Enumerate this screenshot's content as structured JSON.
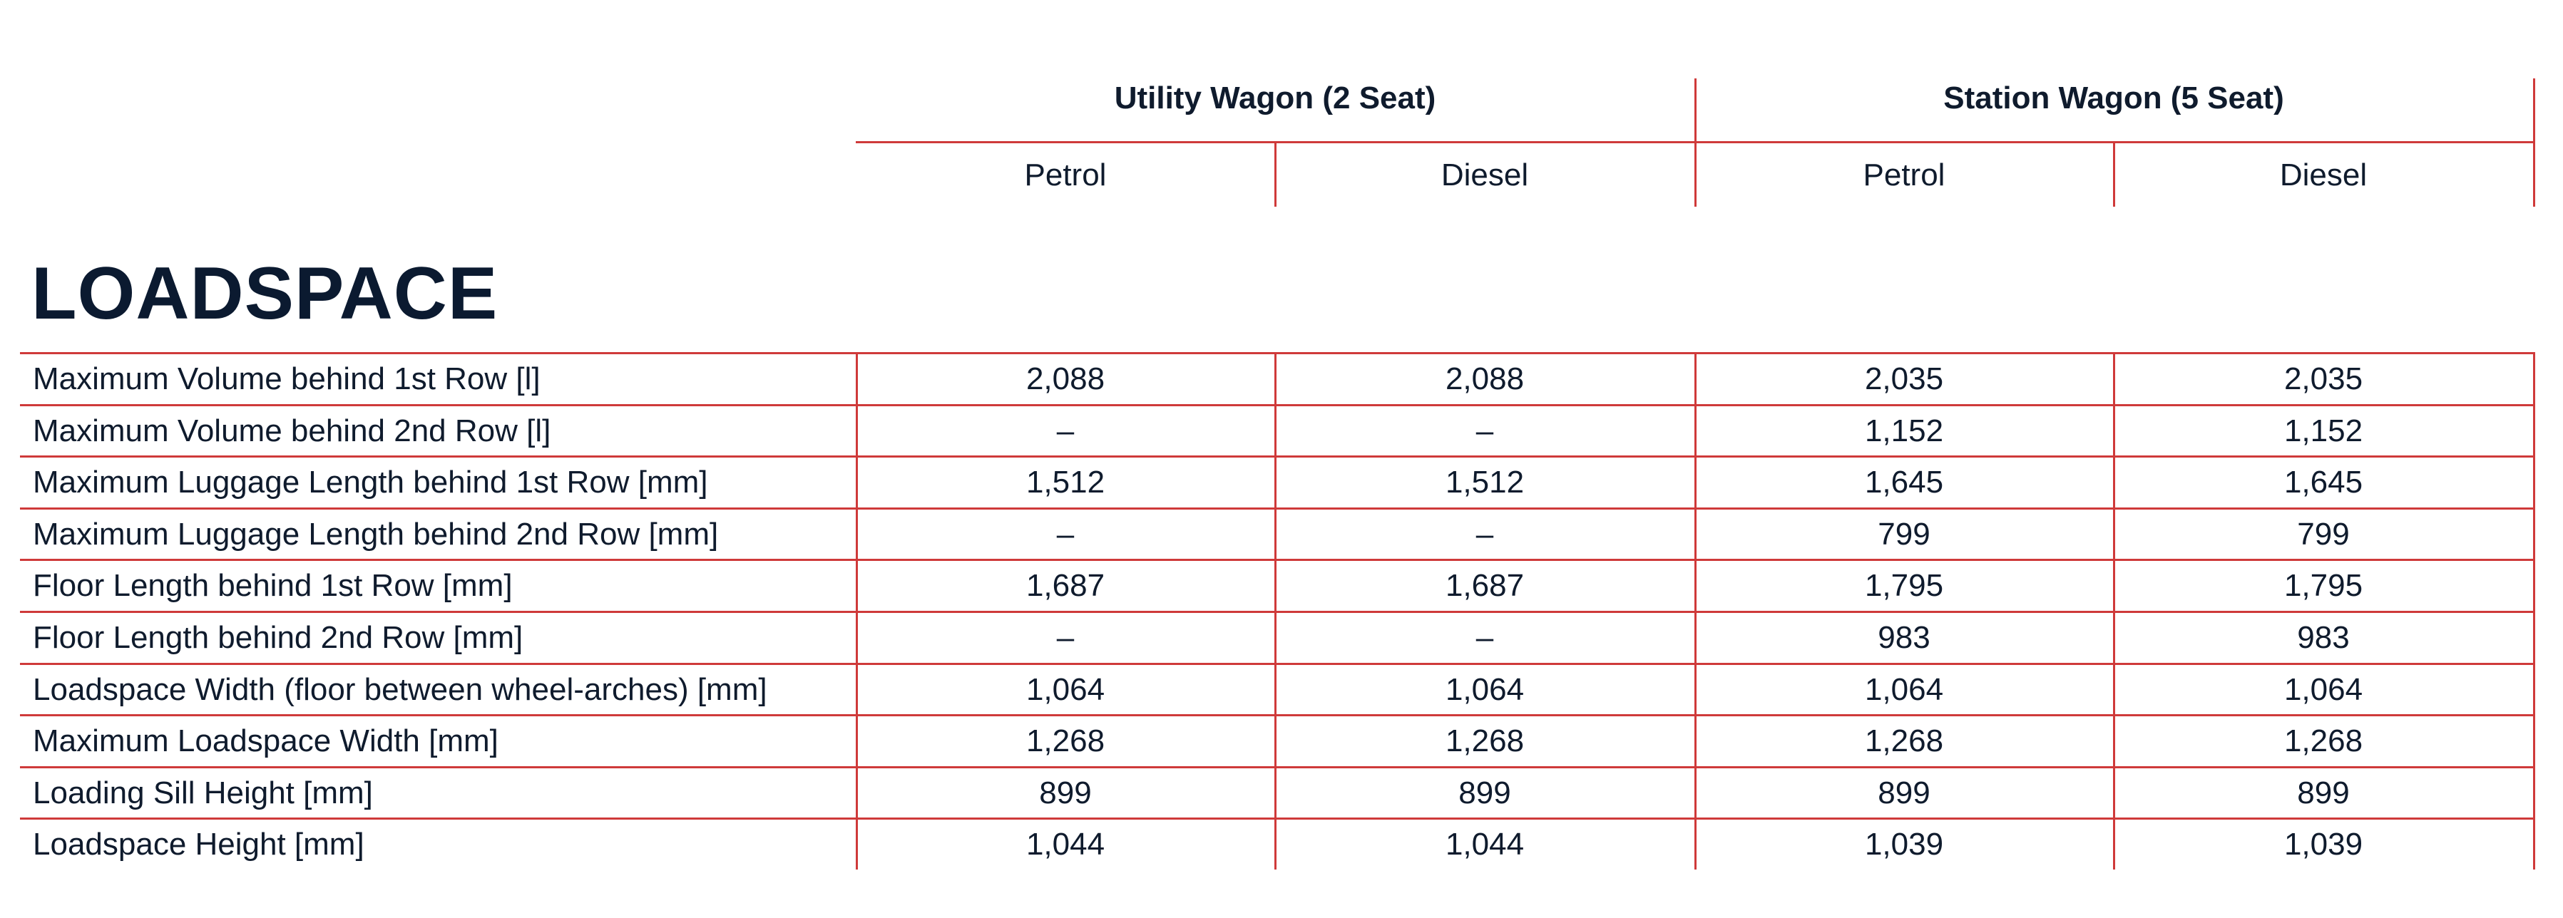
{
  "header": {
    "groups": [
      {
        "label": "Utility Wagon (2 Seat)",
        "fuels": [
          "Petrol",
          "Diesel"
        ]
      },
      {
        "label": "Station Wagon (5 Seat)",
        "fuels": [
          "Petrol",
          "Diesel"
        ]
      }
    ]
  },
  "section_title": "LOADSPACE",
  "table": {
    "rows": [
      {
        "label": "Maximum Volume behind 1st Row [l]",
        "values": [
          "2,088",
          "2,088",
          "2,035",
          "2,035"
        ]
      },
      {
        "label": "Maximum Volume behind 2nd Row [l]",
        "values": [
          "–",
          "–",
          "1,152",
          "1,152"
        ]
      },
      {
        "label": "Maximum Luggage Length behind 1st Row [mm]",
        "values": [
          "1,512",
          "1,512",
          "1,645",
          "1,645"
        ]
      },
      {
        "label": "Maximum Luggage Length behind 2nd Row [mm]",
        "values": [
          "–",
          "–",
          "799",
          "799"
        ]
      },
      {
        "label": "Floor Length behind 1st Row [mm]",
        "values": [
          "1,687",
          "1,687",
          "1,795",
          "1,795"
        ]
      },
      {
        "label": "Floor Length behind 2nd Row [mm]",
        "values": [
          "–",
          "–",
          "983",
          "983"
        ]
      },
      {
        "label": "Loadspace Width (floor between wheel-arches) [mm]",
        "values": [
          "1,064",
          "1,064",
          "1,064",
          "1,064"
        ]
      },
      {
        "label": "Maximum Loadspace Width [mm]",
        "values": [
          "1,268",
          "1,268",
          "1,268",
          "1,268"
        ]
      },
      {
        "label": "Loading Sill Height [mm]",
        "values": [
          "899",
          "899",
          "899",
          "899"
        ]
      },
      {
        "label": "Loadspace Height [mm]",
        "values": [
          "1,044",
          "1,044",
          "1,039",
          "1,039"
        ]
      }
    ]
  },
  "colors": {
    "rule": "#cf3a3a",
    "text": "#0f1b2d"
  }
}
